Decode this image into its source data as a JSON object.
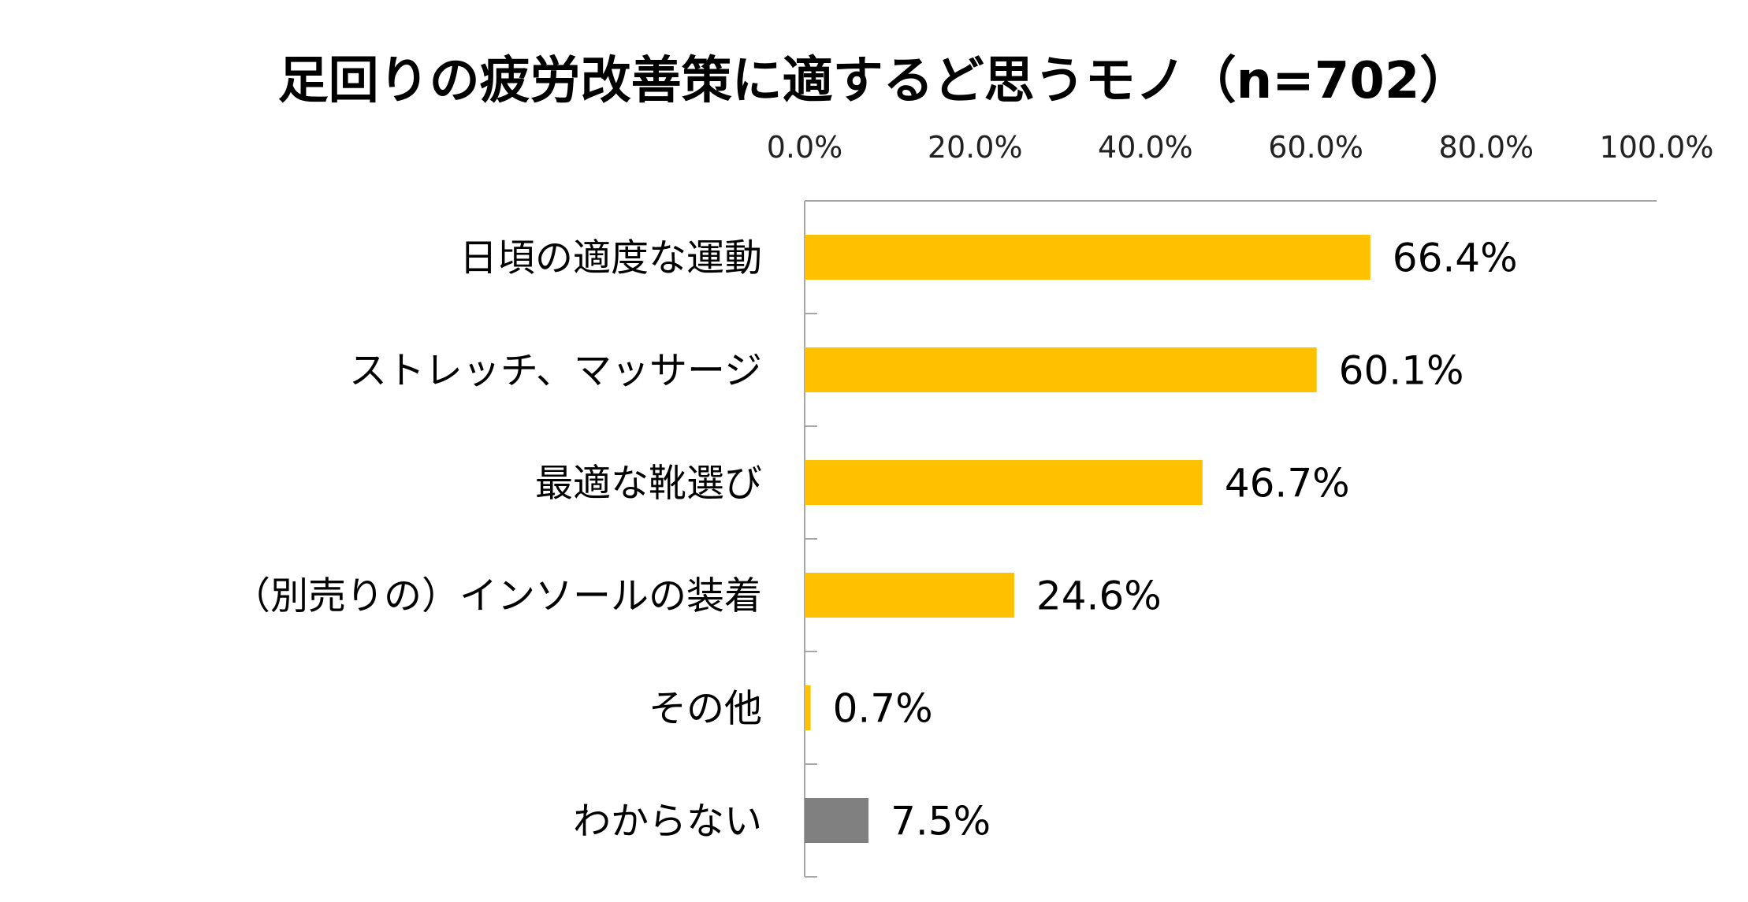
{
  "chart_data": {
    "type": "bar",
    "orientation": "horizontal",
    "title": "足回りの疲労改善策に適するど思うモノ（n=702）",
    "xlim": [
      0,
      100
    ],
    "x_ticks": [
      "0.0%",
      "20.0%",
      "40.0%",
      "60.0%",
      "80.0%",
      "100.0%"
    ],
    "x_axis_position": "top",
    "grid": false,
    "legend": "none",
    "categories": [
      "日頃の適度な運動",
      "ストレッチ、マッサージ",
      "最適な靴選び",
      "（別売りの）インソールの装着",
      "その他",
      "わからない"
    ],
    "values": [
      66.4,
      60.1,
      46.7,
      24.6,
      0.7,
      7.5
    ],
    "data_labels": [
      "66.4%",
      "60.1%",
      "46.7%",
      "24.6%",
      "0.7%",
      "7.5%"
    ],
    "bar_colors": [
      "#FFC000",
      "#FFC000",
      "#FFC000",
      "#FFC000",
      "#FFC000",
      "#808080"
    ],
    "axis_color": "#A6A6A6"
  }
}
